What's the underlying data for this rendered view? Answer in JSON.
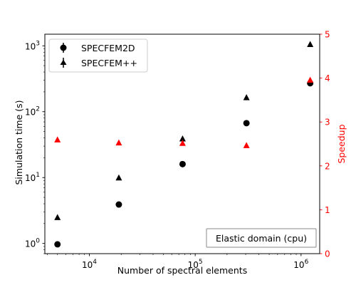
{
  "chart_data": {
    "type": "scatter",
    "x_scale": "log",
    "y_scale": "log",
    "xlabel": "Number of spectral elements",
    "ylabel": "Simulation time (s)",
    "y2label": "Speedup",
    "xlim": [
      3800,
      1500000
    ],
    "ylim": [
      0.7,
      1500
    ],
    "y2lim": [
      0,
      5
    ],
    "x_ticks": [
      {
        "value": 10000,
        "base": "10",
        "exp": "4"
      },
      {
        "value": 100000,
        "base": "10",
        "exp": "5"
      },
      {
        "value": 1000000,
        "base": "10",
        "exp": "6"
      }
    ],
    "y_ticks": [
      {
        "value": 1,
        "base": "10",
        "exp": "0"
      },
      {
        "value": 10,
        "base": "10",
        "exp": "1"
      },
      {
        "value": 100,
        "base": "10",
        "exp": "2"
      },
      {
        "value": 1000,
        "base": "10",
        "exp": "3"
      }
    ],
    "y2_ticks": [
      "0",
      "1",
      "2",
      "3",
      "4",
      "5"
    ],
    "x": [
      5000,
      19000,
      76000,
      305000,
      1220000
    ],
    "series": [
      {
        "name": "SPECFEM2D",
        "axis": "left",
        "marker": "circle",
        "color": "#000000",
        "values": [
          0.97,
          3.9,
          16,
          67,
          270
        ]
      },
      {
        "name": "SPECFEM++",
        "axis": "left",
        "marker": "triangle",
        "color": "#000000",
        "values": [
          2.5,
          10,
          39,
          165,
          1060
        ]
      },
      {
        "axis": "right",
        "marker": "triangle",
        "color": "#ff0000",
        "values": [
          2.6,
          2.53,
          2.52,
          2.47,
          3.96
        ]
      }
    ],
    "legend_position": "upper-left",
    "annotation": "Elastic domain (cpu)",
    "grid": false,
    "accent_color": "#ff0000"
  }
}
